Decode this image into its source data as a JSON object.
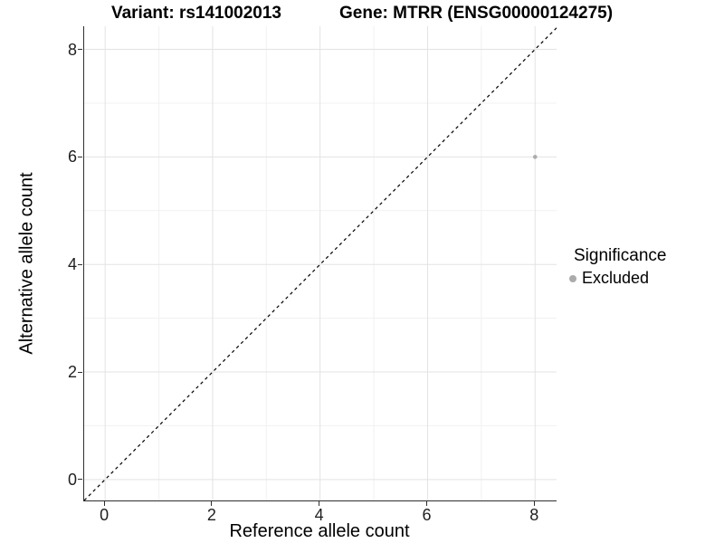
{
  "title": {
    "variant": "Variant: rs141002013",
    "gene": "Gene: MTRR (ENSG00000124275)"
  },
  "axes": {
    "x": {
      "label": "Reference allele count",
      "ticks": [
        0,
        2,
        4,
        6,
        8
      ]
    },
    "y": {
      "label": "Alternative allele count",
      "ticks": [
        0,
        2,
        4,
        6,
        8
      ]
    }
  },
  "legend": {
    "title": "Significance",
    "items": [
      {
        "label": "Excluded",
        "color": "#ababab",
        "marker": "dot-icon"
      }
    ]
  },
  "chart_data": {
    "type": "scatter",
    "title": "Variant: rs141002013    Gene: MTRR (ENSG00000124275)",
    "xlabel": "Reference allele count",
    "ylabel": "Alternative allele count",
    "xlim": [
      -0.39,
      8.4
    ],
    "ylim": [
      -0.39,
      8.43
    ],
    "x_ticks": [
      0,
      2,
      4,
      6,
      8
    ],
    "y_ticks": [
      0,
      2,
      4,
      6,
      8
    ],
    "grid": {
      "on": true,
      "minor_every": 1,
      "major_every": 2,
      "major_color": "#e3e3e3",
      "minor_color": "#f1f1f1"
    },
    "series": [
      {
        "name": "Excluded",
        "color": "#ababab",
        "points": [
          {
            "x": 8,
            "y": 6
          }
        ]
      }
    ],
    "reference_line": {
      "type": "identity y=x",
      "style": "dashed",
      "color": "#000000"
    },
    "legend_position": "right",
    "background": "#ffffff",
    "axis_line_color": "#2f2f2f"
  }
}
